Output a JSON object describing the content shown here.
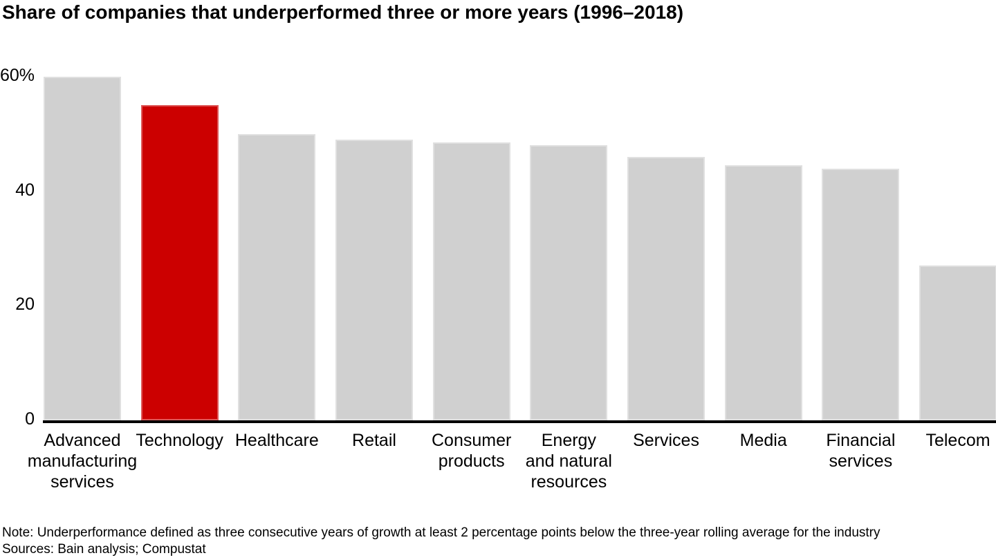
{
  "title": "Share of companies that underperformed three or more years (1996–2018)",
  "chart_data": {
    "type": "bar",
    "title": "Share of companies that underperformed three or more years (1996–2018)",
    "categories": [
      "Advanced manufacturing services",
      "Technology",
      "Healthcare",
      "Retail",
      "Consumer products",
      "Energy and natural resources",
      "Services",
      "Media",
      "Financial services",
      "Telecom"
    ],
    "category_lines": [
      [
        "Advanced",
        "manufacturing",
        "services"
      ],
      [
        "Technology"
      ],
      [
        "Healthcare"
      ],
      [
        "Retail"
      ],
      [
        "Consumer",
        "products"
      ],
      [
        "Energy",
        "and natural",
        "resources"
      ],
      [
        "Services"
      ],
      [
        "Media"
      ],
      [
        "Financial",
        "services"
      ],
      [
        "Telecom"
      ]
    ],
    "values": [
      60,
      55,
      50,
      49,
      48.5,
      48,
      46,
      44.5,
      44,
      27
    ],
    "unit": "%",
    "highlight_index": 1,
    "highlighted_category": "Technology",
    "bar_color": "#d0d0d0",
    "highlight_color": "#cc0000",
    "axis_color": "#000000",
    "y_ticks": [
      {
        "value": 60,
        "label": "60%"
      },
      {
        "value": 40,
        "label": "40"
      },
      {
        "value": 20,
        "label": "20"
      },
      {
        "value": 0,
        "label": "0"
      }
    ],
    "ylim": [
      0,
      60
    ],
    "xlabel": "",
    "ylabel": "",
    "grid": false,
    "legend": false
  },
  "footnotes": {
    "note": "Note: Underperformance defined as three consecutive years of growth at least 2 percentage points below the three-year rolling average for the industry",
    "sources": "Sources: Bain analysis; Compustat"
  }
}
